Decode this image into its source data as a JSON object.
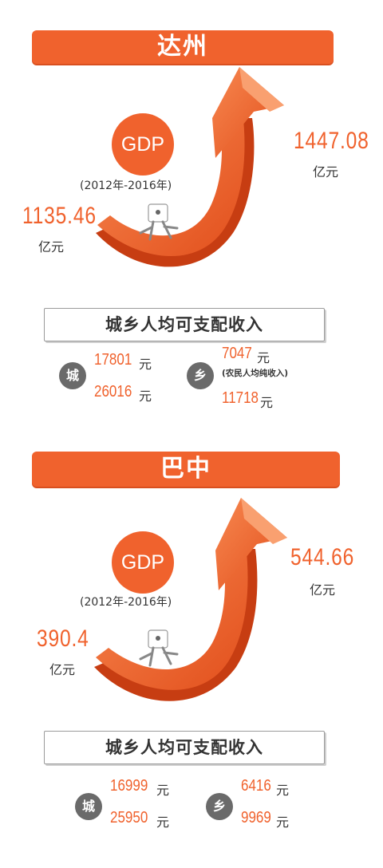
{
  "colors": {
    "accent": "#f0622d",
    "badge": "#6a6a6a",
    "text": "#333333"
  },
  "sections": [
    {
      "city": "达州",
      "gdp_label": "GDP",
      "years": "(2012年-2016年)",
      "start_value": "1135.46",
      "start_unit": "亿元",
      "end_value": "1447.08",
      "end_unit": "亿元",
      "income_title": "城乡人均可支配收入",
      "urban": {
        "badge": "城",
        "from": "17801",
        "from_unit": "元",
        "to": "26016",
        "to_unit": "元"
      },
      "rural": {
        "badge": "乡",
        "from": "7047",
        "from_unit": "元",
        "note": "(农民人均纯收入)",
        "to": "11718",
        "to_unit": "元"
      }
    },
    {
      "city": "巴中",
      "gdp_label": "GDP",
      "years": "(2012年-2016年)",
      "start_value": "390.4",
      "start_unit": "亿元",
      "end_value": "544.66",
      "end_unit": "亿元",
      "income_title": "城乡人均可支配收入",
      "urban": {
        "badge": "城",
        "from": "16999",
        "from_unit": "元",
        "to": "25950",
        "to_unit": "元"
      },
      "rural": {
        "badge": "乡",
        "from": "6416",
        "from_unit": "元",
        "to": "9969",
        "to_unit": "元"
      }
    }
  ]
}
